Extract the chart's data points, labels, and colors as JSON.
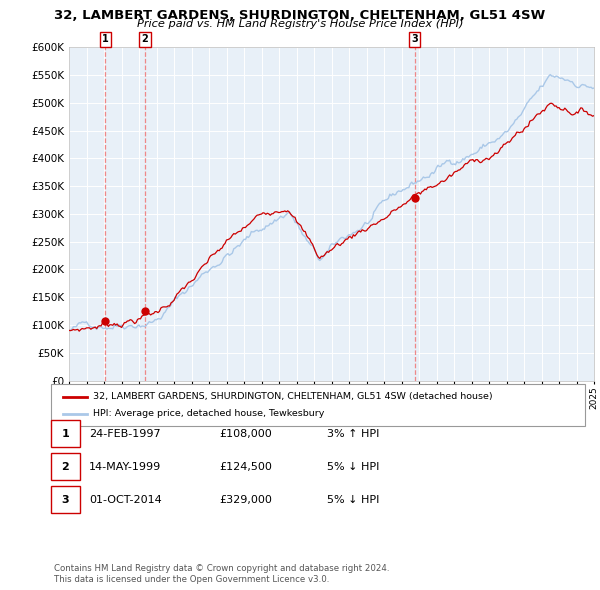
{
  "title_line1": "32, LAMBERT GARDENS, SHURDINGTON, CHELTENHAM, GL51 4SW",
  "title_line2": "Price paid vs. HM Land Registry's House Price Index (HPI)",
  "ylabel_ticks": [
    "£0",
    "£50K",
    "£100K",
    "£150K",
    "£200K",
    "£250K",
    "£300K",
    "£350K",
    "£400K",
    "£450K",
    "£500K",
    "£550K",
    "£600K"
  ],
  "ytick_values": [
    0,
    50000,
    100000,
    150000,
    200000,
    250000,
    300000,
    350000,
    400000,
    450000,
    500000,
    550000,
    600000
  ],
  "ylim": [
    0,
    600000
  ],
  "hpi_color": "#aac8e8",
  "price_color": "#cc0000",
  "marker_color": "#cc0000",
  "vline_color": "#ee8888",
  "plot_bg": "#e8f0f8",
  "grid_color": "#ffffff",
  "sale1_date": "24-FEB-1997",
  "sale1_price": 108000,
  "sale1_pct": "3% ↑ HPI",
  "sale2_date": "14-MAY-1999",
  "sale2_price": 124500,
  "sale2_pct": "5% ↓ HPI",
  "sale3_date": "01-OCT-2014",
  "sale3_price": 329000,
  "sale3_pct": "5% ↓ HPI",
  "legend_label1": "32, LAMBERT GARDENS, SHURDINGTON, CHELTENHAM, GL51 4SW (detached house)",
  "legend_label2": "HPI: Average price, detached house, Tewkesbury",
  "footnote1": "Contains HM Land Registry data © Crown copyright and database right 2024.",
  "footnote2": "This data is licensed under the Open Government Licence v3.0.",
  "xstart_year": 1995,
  "xend_year": 2025
}
